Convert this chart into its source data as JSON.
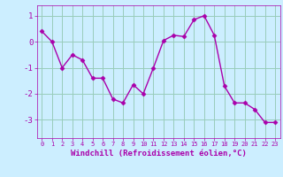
{
  "x": [
    0,
    1,
    2,
    3,
    4,
    5,
    6,
    7,
    8,
    9,
    10,
    11,
    12,
    13,
    14,
    15,
    16,
    17,
    18,
    19,
    20,
    21,
    22,
    23
  ],
  "y": [
    0.4,
    0.0,
    -1.0,
    -0.5,
    -0.7,
    -1.4,
    -1.4,
    -2.2,
    -2.35,
    -1.65,
    -2.0,
    -1.0,
    0.05,
    0.25,
    0.2,
    0.85,
    1.0,
    0.25,
    -1.7,
    -2.35,
    -2.35,
    -2.6,
    -3.1,
    -3.1
  ],
  "line_color": "#aa00aa",
  "marker": "D",
  "marker_size": 2.5,
  "bg_color": "#cceeff",
  "grid_color": "#99ccbb",
  "xlabel": "Windchill (Refroidissement éolien,°C)",
  "xlabel_color": "#aa00aa",
  "tick_color": "#aa00aa",
  "ylim": [
    -3.7,
    1.4
  ],
  "xlim": [
    -0.5,
    23.5
  ],
  "yticks": [
    -3,
    -2,
    -1,
    0,
    1
  ],
  "xticks": [
    0,
    1,
    2,
    3,
    4,
    5,
    6,
    7,
    8,
    9,
    10,
    11,
    12,
    13,
    14,
    15,
    16,
    17,
    18,
    19,
    20,
    21,
    22,
    23
  ]
}
